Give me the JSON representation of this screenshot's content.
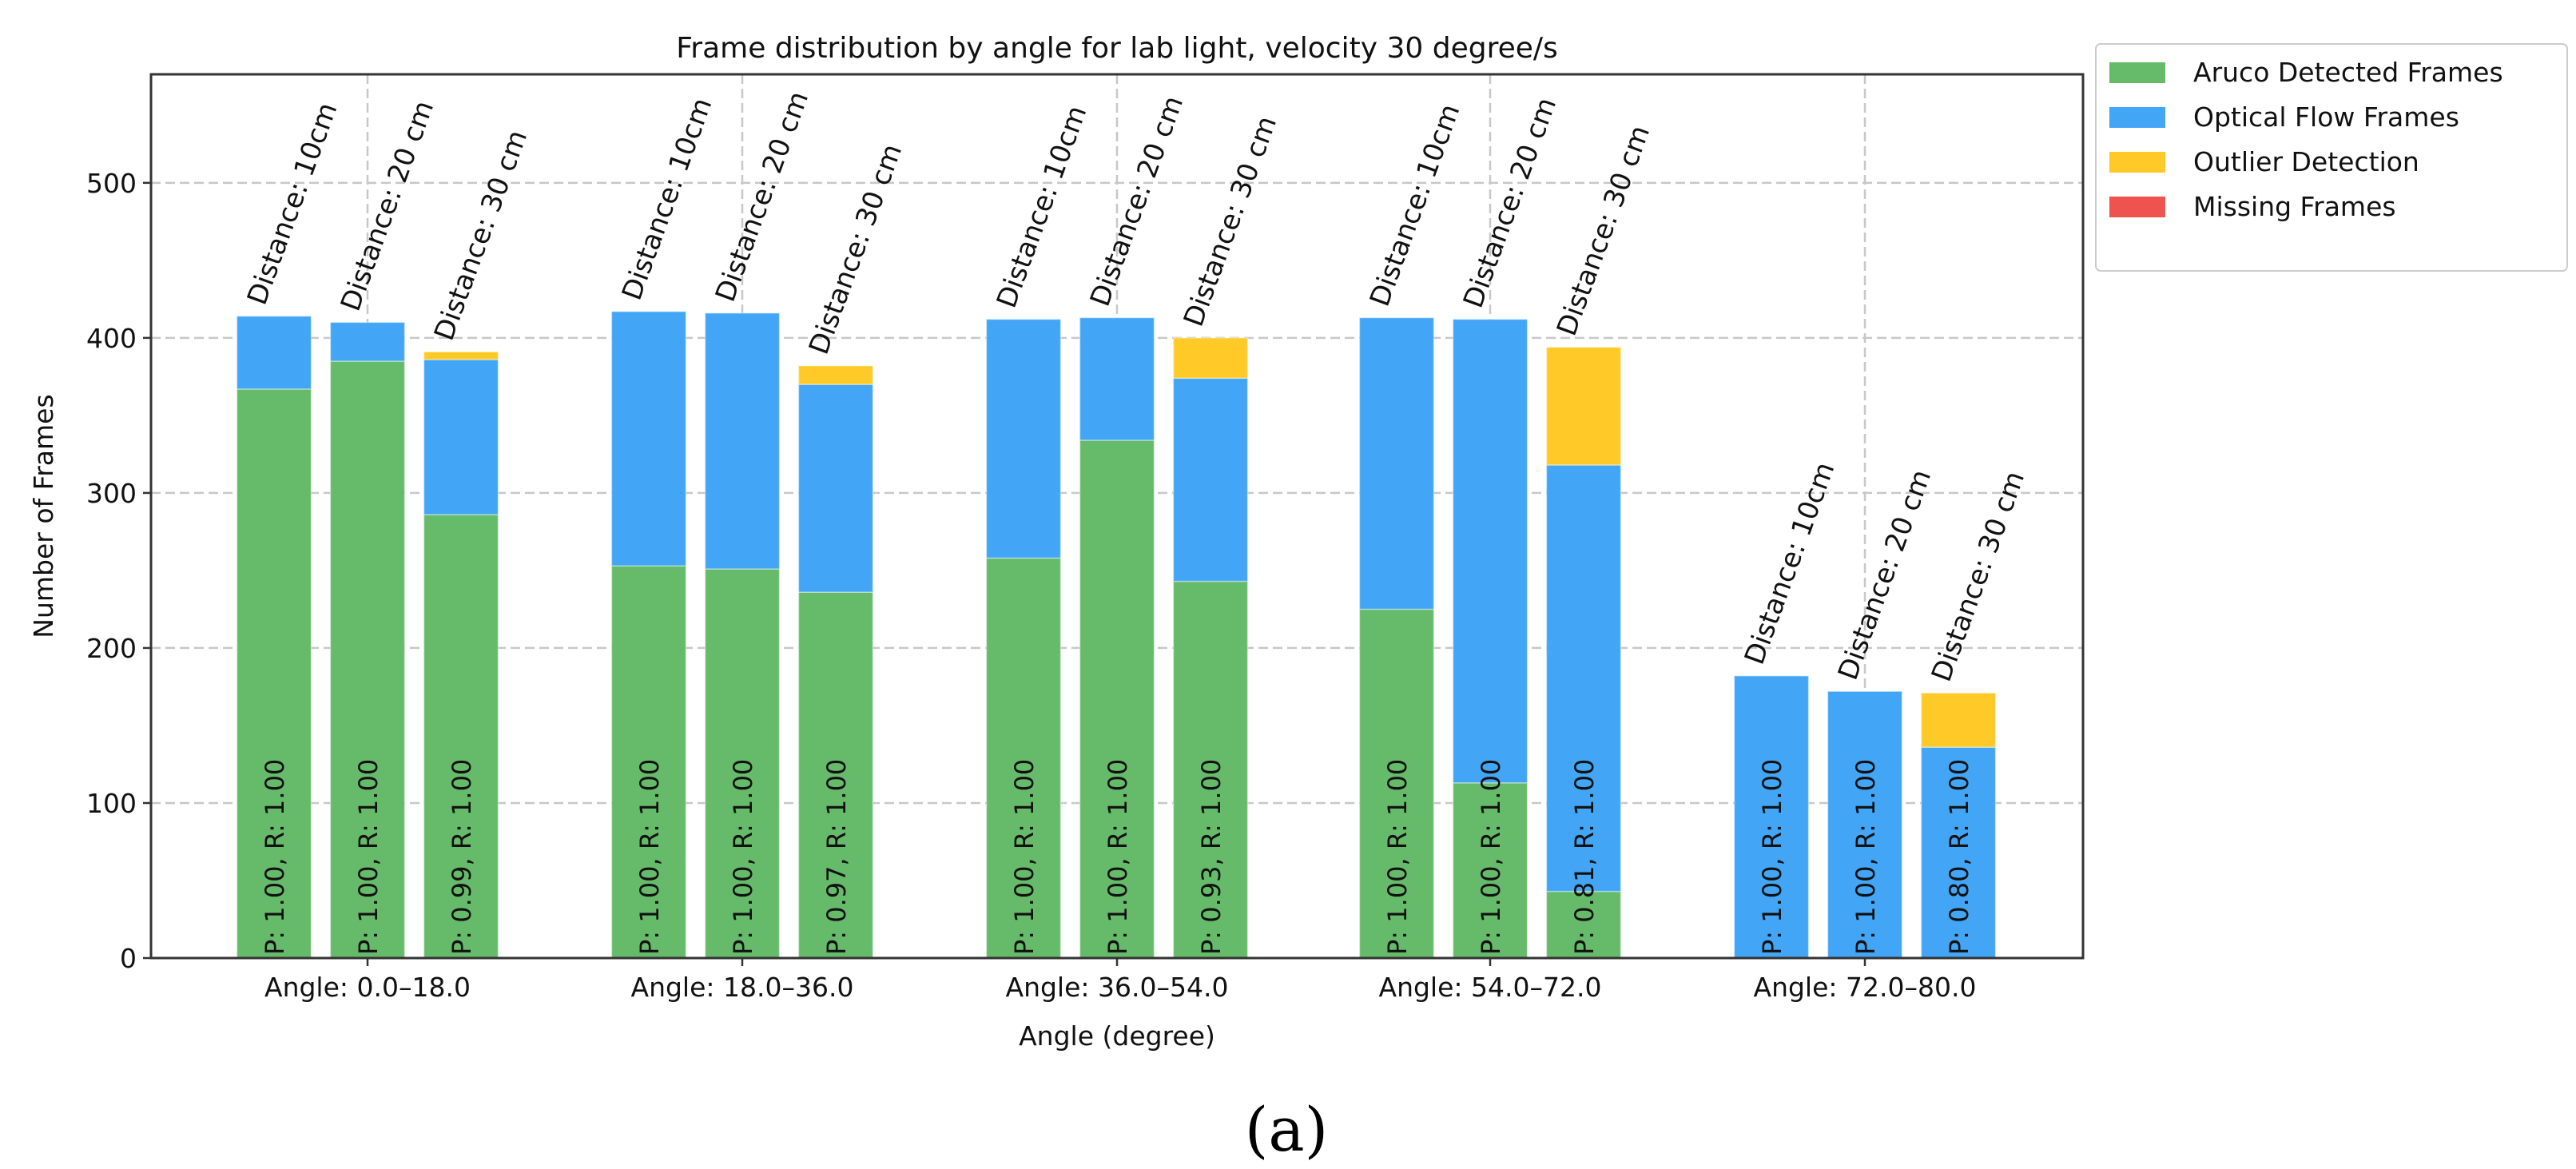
{
  "chart_data": {
    "type": "bar",
    "stacked": true,
    "title": "Frame distribution by angle for lab light, velocity 30 degree/s",
    "xlabel": "Angle (degree)",
    "ylabel": "Number of Frames",
    "ylim": [
      0,
      570
    ],
    "yticks": [
      0,
      100,
      200,
      300,
      400,
      500
    ],
    "grid": true,
    "legend_position": "outside-top-right",
    "categories": [
      "Angle: 0.0–18.0",
      "Angle: 18.0–36.0",
      "Angle: 36.0–54.0",
      "Angle: 54.0–72.0",
      "Angle: 72.0–80.0"
    ],
    "bar_labels": [
      "Distance: 10cm",
      "Distance: 20 cm",
      "Distance: 30 cm"
    ],
    "series": [
      {
        "name": "Aruco Detected Frames",
        "color": "#66bb6a",
        "values": [
          [
            367,
            385,
            286
          ],
          [
            253,
            251,
            236
          ],
          [
            258,
            334,
            243
          ],
          [
            225,
            113,
            43
          ],
          [
            0,
            0,
            0
          ]
        ]
      },
      {
        "name": "Optical Flow Frames",
        "color": "#42a5f5",
        "values": [
          [
            47,
            25,
            100
          ],
          [
            164,
            165,
            134
          ],
          [
            154,
            79,
            131
          ],
          [
            188,
            299,
            275
          ],
          [
            182,
            172,
            136
          ]
        ]
      },
      {
        "name": "Outlier Detection",
        "color": "#ffca28",
        "values": [
          [
            0,
            0,
            5
          ],
          [
            0,
            0,
            12
          ],
          [
            0,
            0,
            26
          ],
          [
            0,
            0,
            76
          ],
          [
            0,
            0,
            35
          ]
        ]
      },
      {
        "name": "Missing Frames",
        "color": "#ef5350",
        "values": [
          [
            0,
            0,
            0
          ],
          [
            0,
            0,
            0
          ],
          [
            0,
            0,
            0
          ],
          [
            0,
            0,
            0
          ],
          [
            0,
            0,
            0
          ]
        ]
      }
    ],
    "pr_labels": [
      [
        "P: 1.00, R: 1.00",
        "P: 1.00, R: 1.00",
        "P: 0.99, R: 1.00"
      ],
      [
        "P: 1.00, R: 1.00",
        "P: 1.00, R: 1.00",
        "P: 0.97, R: 1.00"
      ],
      [
        "P: 1.00, R: 1.00",
        "P: 1.00, R: 1.00",
        "P: 0.93, R: 1.00"
      ],
      [
        "P: 1.00, R: 1.00",
        "P: 1.00, R: 1.00",
        "P: 0.81, R: 1.00"
      ],
      [
        "P: 1.00, R: 1.00",
        "P: 1.00, R: 1.00",
        "P: 0.80, R: 1.00"
      ]
    ]
  },
  "caption": "(a)"
}
